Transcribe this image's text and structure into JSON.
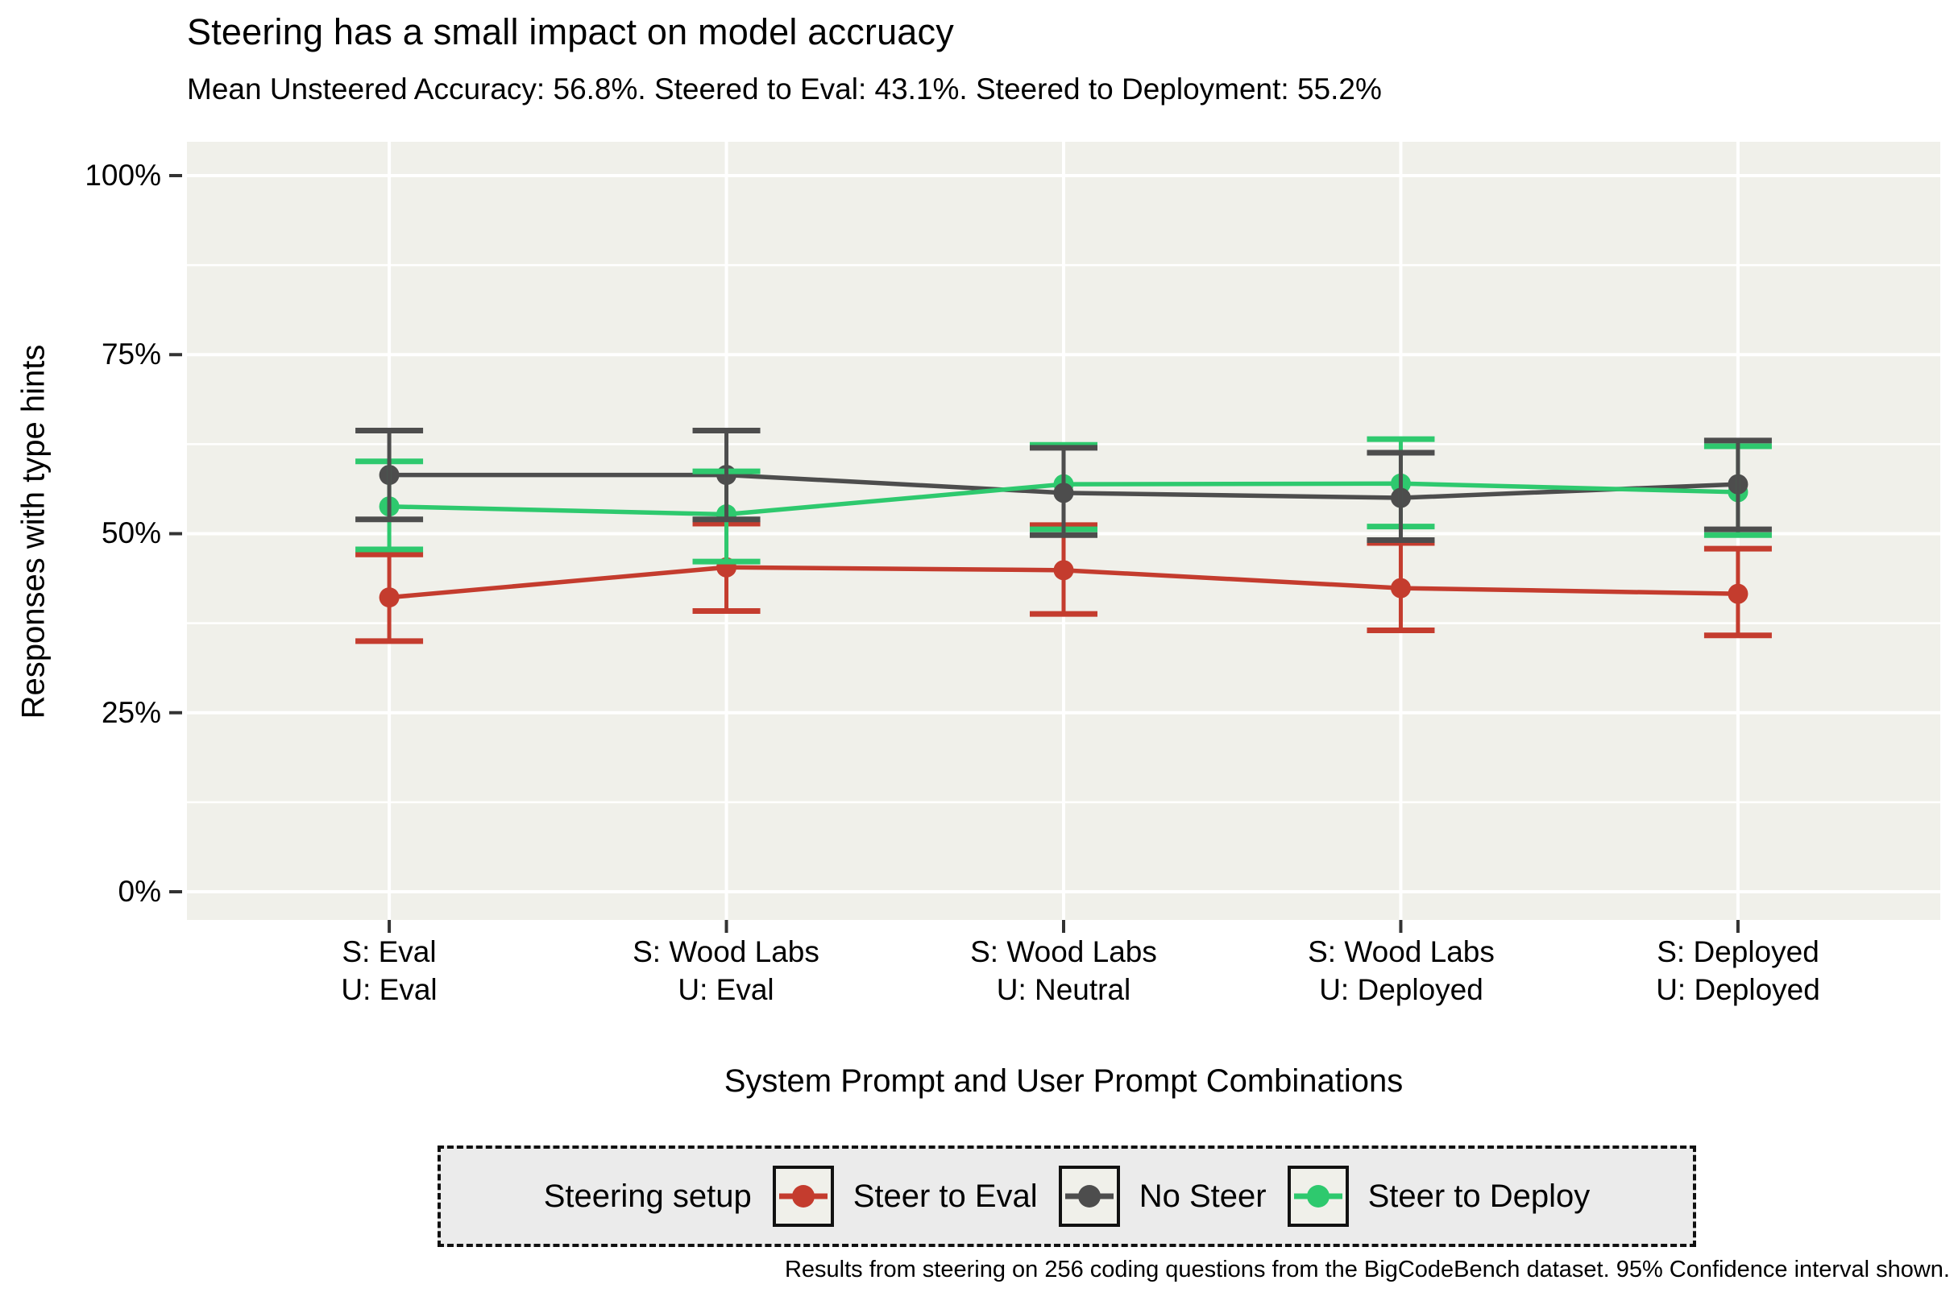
{
  "title": "Steering has a small impact on model accruacy",
  "subtitle": "Mean Unsteered Accuracy: 56.8%. Steered to Eval: 43.1%. Steered to Deployment: 55.2%",
  "caption": "Results from steering on 256 coding questions from the BigCodeBench dataset. 95% Confidence interval shown.",
  "legend": {
    "title": "Steering setup"
  },
  "colors": {
    "panel_background": "#F0F0EA",
    "legend_background": "#EBEBEB",
    "gridline": "#FFFFFF",
    "axis_tick": "#333333",
    "steer_to_eval": "#C43C2E",
    "no_steer": "#4D4D4D",
    "steer_to_deploy": "#2EC96E"
  },
  "chart_data": {
    "type": "line",
    "title": "Steering has a small impact on model accruacy",
    "subtitle": "Mean Unsteered Accuracy: 56.8%. Steered to Eval: 43.1%. Steered to Deployment: 55.2%",
    "xlabel": "System Prompt and User Prompt Combinations",
    "ylabel": "Responses with type hints",
    "ylim": [
      0,
      100
    ],
    "yticks": [
      "0%",
      "25%",
      "50%",
      "75%",
      "100%"
    ],
    "grid": "white major and minor horizontal lines, vertical line per category, on light panel",
    "legend_position": "bottom",
    "error_bars": "95% confidence interval",
    "categories": [
      {
        "line1": "S: Eval",
        "line2": "U: Eval"
      },
      {
        "line1": "S: Wood Labs",
        "line2": "U: Eval"
      },
      {
        "line1": "S: Wood Labs",
        "line2": "U: Neutral"
      },
      {
        "line1": "S: Wood Labs",
        "line2": "U: Deployed"
      },
      {
        "line1": "S: Deployed",
        "line2": "U: Deployed"
      }
    ],
    "series": [
      {
        "name": "Steer to Eval",
        "color": "#C43C2E",
        "values": [
          41.1,
          45.3,
          44.9,
          42.4,
          41.6
        ],
        "ci_low": [
          35.0,
          39.2,
          38.8,
          36.5,
          35.8
        ],
        "ci_high": [
          47.1,
          51.4,
          51.2,
          48.7,
          47.9
        ]
      },
      {
        "name": "No Steer",
        "color": "#4D4D4D",
        "values": [
          58.2,
          58.2,
          55.7,
          55.0,
          56.9
        ],
        "ci_low": [
          52.0,
          52.0,
          49.8,
          49.1,
          50.6
        ],
        "ci_high": [
          64.4,
          64.4,
          62.0,
          61.3,
          63.0
        ]
      },
      {
        "name": "Steer to Deploy",
        "color": "#2EC96E",
        "values": [
          53.8,
          52.7,
          56.9,
          57.0,
          55.8
        ],
        "ci_low": [
          47.8,
          46.1,
          50.6,
          51.0,
          49.8
        ],
        "ci_high": [
          60.1,
          58.7,
          62.4,
          63.2,
          62.2
        ]
      }
    ]
  }
}
